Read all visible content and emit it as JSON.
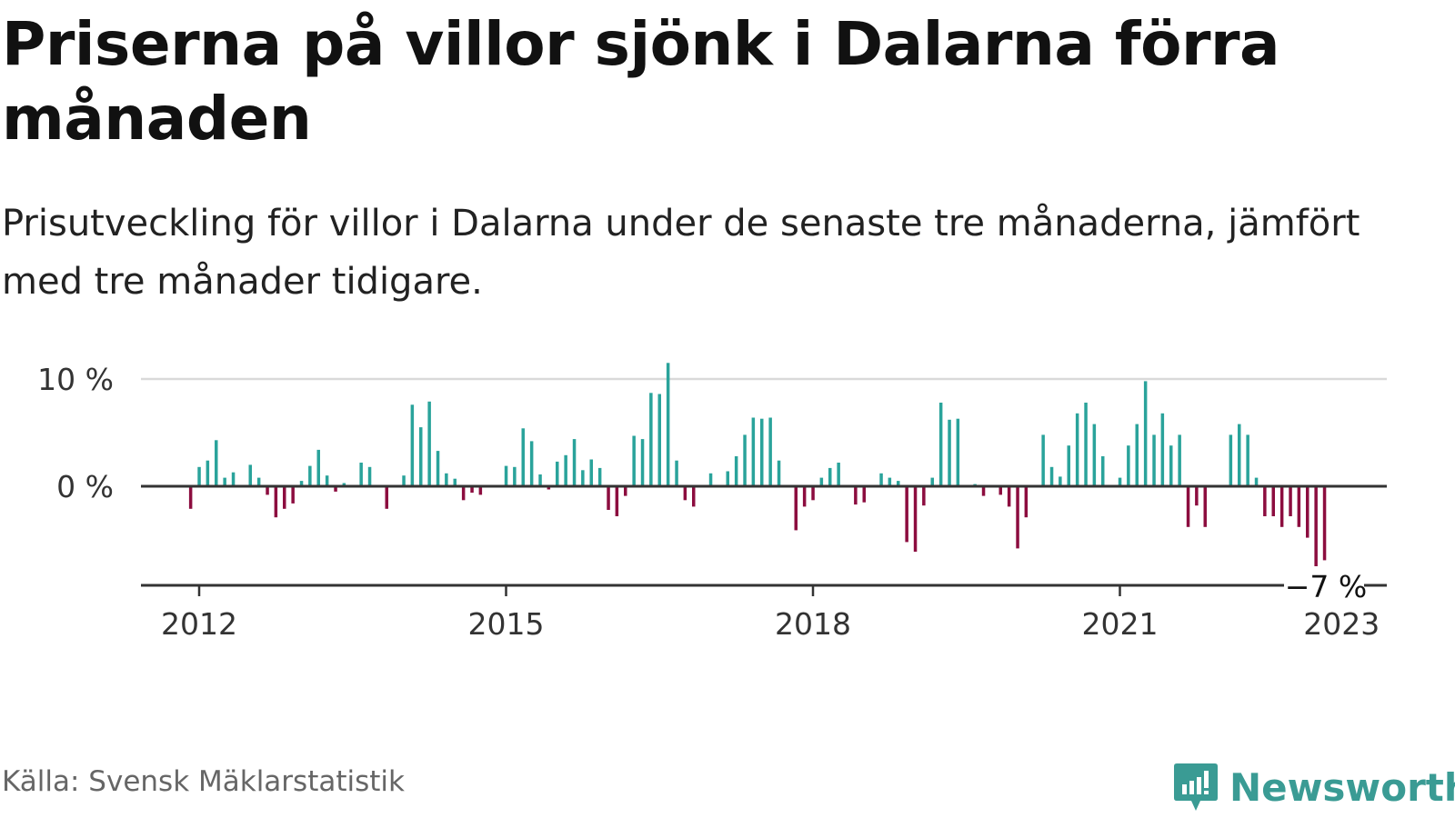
{
  "title": "Priserna på villor sjönk i Dalarna förra månaden",
  "subtitle": "Prisutveckling för villor i Dalarna under de senaste tre månaderna, jämfört med tre månader tidigare.",
  "source": "Källa: Svensk Mäklarstatistik",
  "brand": {
    "name": "Newsworthy",
    "logo_icon": "newsworthy-logo-icon"
  },
  "colors": {
    "positive": "#2aa39b",
    "negative": "#8c0d3f",
    "grid": "#d9d9d9",
    "axis": "#333333"
  },
  "chart_data": {
    "type": "bar",
    "x_unit": "month",
    "x_start": "2011-12",
    "x_end": "2023-04",
    "y_ticks": [
      {
        "value": 10,
        "label": "10 %"
      },
      {
        "value": 0,
        "label": "0 %"
      }
    ],
    "x_ticks": [
      {
        "date": "2012-01",
        "label": "2012"
      },
      {
        "date": "2015-01",
        "label": "2015"
      },
      {
        "date": "2018-01",
        "label": "2018"
      },
      {
        "date": "2021-01",
        "label": "2021"
      },
      {
        "date": "2023-03",
        "label": "2023"
      }
    ],
    "ylim": [
      -9.3,
      11.5
    ],
    "grid": true,
    "annotation": {
      "label": "−7 %",
      "value": -7
    },
    "values": [
      {
        "date": "2011-12",
        "value": -2.1
      },
      {
        "date": "2012-01",
        "value": 1.8
      },
      {
        "date": "2012-02",
        "value": 2.4
      },
      {
        "date": "2012-03",
        "value": 4.3
      },
      {
        "date": "2012-04",
        "value": 0.8
      },
      {
        "date": "2012-05",
        "value": 1.3
      },
      {
        "date": "2012-06",
        "value": 0.0
      },
      {
        "date": "2012-07",
        "value": 2.0
      },
      {
        "date": "2012-08",
        "value": 0.8
      },
      {
        "date": "2012-09",
        "value": -0.8
      },
      {
        "date": "2012-10",
        "value": -2.9
      },
      {
        "date": "2012-11",
        "value": -2.1
      },
      {
        "date": "2012-12",
        "value": -1.6
      },
      {
        "date": "2013-01",
        "value": 0.5
      },
      {
        "date": "2013-02",
        "value": 1.9
      },
      {
        "date": "2013-03",
        "value": 3.4
      },
      {
        "date": "2013-04",
        "value": 1.0
      },
      {
        "date": "2013-05",
        "value": -0.5
      },
      {
        "date": "2013-06",
        "value": 0.3
      },
      {
        "date": "2013-07",
        "value": 0.0
      },
      {
        "date": "2013-08",
        "value": 2.2
      },
      {
        "date": "2013-09",
        "value": 1.8
      },
      {
        "date": "2013-10",
        "value": 0.0
      },
      {
        "date": "2013-11",
        "value": -2.1
      },
      {
        "date": "2013-12",
        "value": 0.0
      },
      {
        "date": "2014-01",
        "value": 1.0
      },
      {
        "date": "2014-02",
        "value": 7.6
      },
      {
        "date": "2014-03",
        "value": 5.5
      },
      {
        "date": "2014-04",
        "value": 7.9
      },
      {
        "date": "2014-05",
        "value": 3.3
      },
      {
        "date": "2014-06",
        "value": 1.2
      },
      {
        "date": "2014-07",
        "value": 0.7
      },
      {
        "date": "2014-08",
        "value": -1.3
      },
      {
        "date": "2014-09",
        "value": -0.6
      },
      {
        "date": "2014-10",
        "value": -0.8
      },
      {
        "date": "2015-01",
        "value": 1.9
      },
      {
        "date": "2015-02",
        "value": 1.8
      },
      {
        "date": "2015-03",
        "value": 5.4
      },
      {
        "date": "2015-04",
        "value": 4.2
      },
      {
        "date": "2015-05",
        "value": 1.1
      },
      {
        "date": "2015-06",
        "value": -0.3
      },
      {
        "date": "2015-07",
        "value": 2.3
      },
      {
        "date": "2015-08",
        "value": 2.9
      },
      {
        "date": "2015-09",
        "value": 4.4
      },
      {
        "date": "2015-10",
        "value": 1.5
      },
      {
        "date": "2015-11",
        "value": 2.5
      },
      {
        "date": "2015-12",
        "value": 1.7
      },
      {
        "date": "2016-01",
        "value": -2.2
      },
      {
        "date": "2016-02",
        "value": -2.8
      },
      {
        "date": "2016-03",
        "value": -0.9
      },
      {
        "date": "2016-04",
        "value": 4.7
      },
      {
        "date": "2016-05",
        "value": 4.4
      },
      {
        "date": "2016-06",
        "value": 8.7
      },
      {
        "date": "2016-07",
        "value": 8.6
      },
      {
        "date": "2016-08",
        "value": 11.5
      },
      {
        "date": "2016-09",
        "value": 2.4
      },
      {
        "date": "2016-10",
        "value": -1.3
      },
      {
        "date": "2016-11",
        "value": -1.9
      },
      {
        "date": "2017-01",
        "value": 1.2
      },
      {
        "date": "2017-02",
        "value": 0.0
      },
      {
        "date": "2017-03",
        "value": 1.4
      },
      {
        "date": "2017-04",
        "value": 2.8
      },
      {
        "date": "2017-05",
        "value": 4.8
      },
      {
        "date": "2017-06",
        "value": 6.4
      },
      {
        "date": "2017-07",
        "value": 6.3
      },
      {
        "date": "2017-08",
        "value": 6.4
      },
      {
        "date": "2017-09",
        "value": 2.4
      },
      {
        "date": "2017-10",
        "value": 0.0
      },
      {
        "date": "2017-11",
        "value": -4.1
      },
      {
        "date": "2017-12",
        "value": -1.9
      },
      {
        "date": "2018-01",
        "value": -1.3
      },
      {
        "date": "2018-02",
        "value": 0.8
      },
      {
        "date": "2018-03",
        "value": 1.7
      },
      {
        "date": "2018-04",
        "value": 2.2
      },
      {
        "date": "2018-05",
        "value": 0.0
      },
      {
        "date": "2018-06",
        "value": -1.7
      },
      {
        "date": "2018-07",
        "value": -1.5
      },
      {
        "date": "2018-08",
        "value": 0.0
      },
      {
        "date": "2018-09",
        "value": 1.2
      },
      {
        "date": "2018-10",
        "value": 0.8
      },
      {
        "date": "2018-11",
        "value": 0.5
      },
      {
        "date": "2018-12",
        "value": -5.2
      },
      {
        "date": "2019-01",
        "value": -6.1
      },
      {
        "date": "2019-02",
        "value": -1.8
      },
      {
        "date": "2019-03",
        "value": 0.8
      },
      {
        "date": "2019-04",
        "value": 7.8
      },
      {
        "date": "2019-05",
        "value": 6.2
      },
      {
        "date": "2019-06",
        "value": 6.3
      },
      {
        "date": "2019-07",
        "value": 0.0
      },
      {
        "date": "2019-08",
        "value": 0.2
      },
      {
        "date": "2019-09",
        "value": -0.9
      },
      {
        "date": "2019-10",
        "value": 0.0
      },
      {
        "date": "2019-11",
        "value": -0.8
      },
      {
        "date": "2019-12",
        "value": -1.9
      },
      {
        "date": "2020-01",
        "value": -5.8
      },
      {
        "date": "2020-02",
        "value": -2.9
      },
      {
        "date": "2020-04",
        "value": 4.8
      },
      {
        "date": "2020-05",
        "value": 1.8
      },
      {
        "date": "2020-06",
        "value": 0.9
      },
      {
        "date": "2020-07",
        "value": 3.8
      },
      {
        "date": "2020-08",
        "value": 6.8
      },
      {
        "date": "2020-09",
        "value": 7.8
      },
      {
        "date": "2020-10",
        "value": 5.8
      },
      {
        "date": "2020-11",
        "value": 2.8
      },
      {
        "date": "2021-01",
        "value": 0.8
      },
      {
        "date": "2021-02",
        "value": 3.8
      },
      {
        "date": "2021-03",
        "value": 5.8
      },
      {
        "date": "2021-04",
        "value": 9.8
      },
      {
        "date": "2021-05",
        "value": 4.8
      },
      {
        "date": "2021-06",
        "value": 6.8
      },
      {
        "date": "2021-07",
        "value": 3.8
      },
      {
        "date": "2021-08",
        "value": 4.8
      },
      {
        "date": "2021-09",
        "value": -3.8
      },
      {
        "date": "2021-10",
        "value": -1.8
      },
      {
        "date": "2021-11",
        "value": -3.8
      },
      {
        "date": "2022-02",
        "value": 4.8
      },
      {
        "date": "2022-03",
        "value": 5.8
      },
      {
        "date": "2022-04",
        "value": 4.8
      },
      {
        "date": "2022-05",
        "value": 0.8
      },
      {
        "date": "2022-06",
        "value": -2.8
      },
      {
        "date": "2022-07",
        "value": -2.8
      },
      {
        "date": "2022-08",
        "value": -3.8
      },
      {
        "date": "2022-09",
        "value": -2.8
      },
      {
        "date": "2022-10",
        "value": -3.8
      },
      {
        "date": "2022-11",
        "value": -4.8
      },
      {
        "date": "2022-12",
        "value": -7.6
      },
      {
        "date": "2023-01",
        "value": -6.9
      }
    ]
  }
}
